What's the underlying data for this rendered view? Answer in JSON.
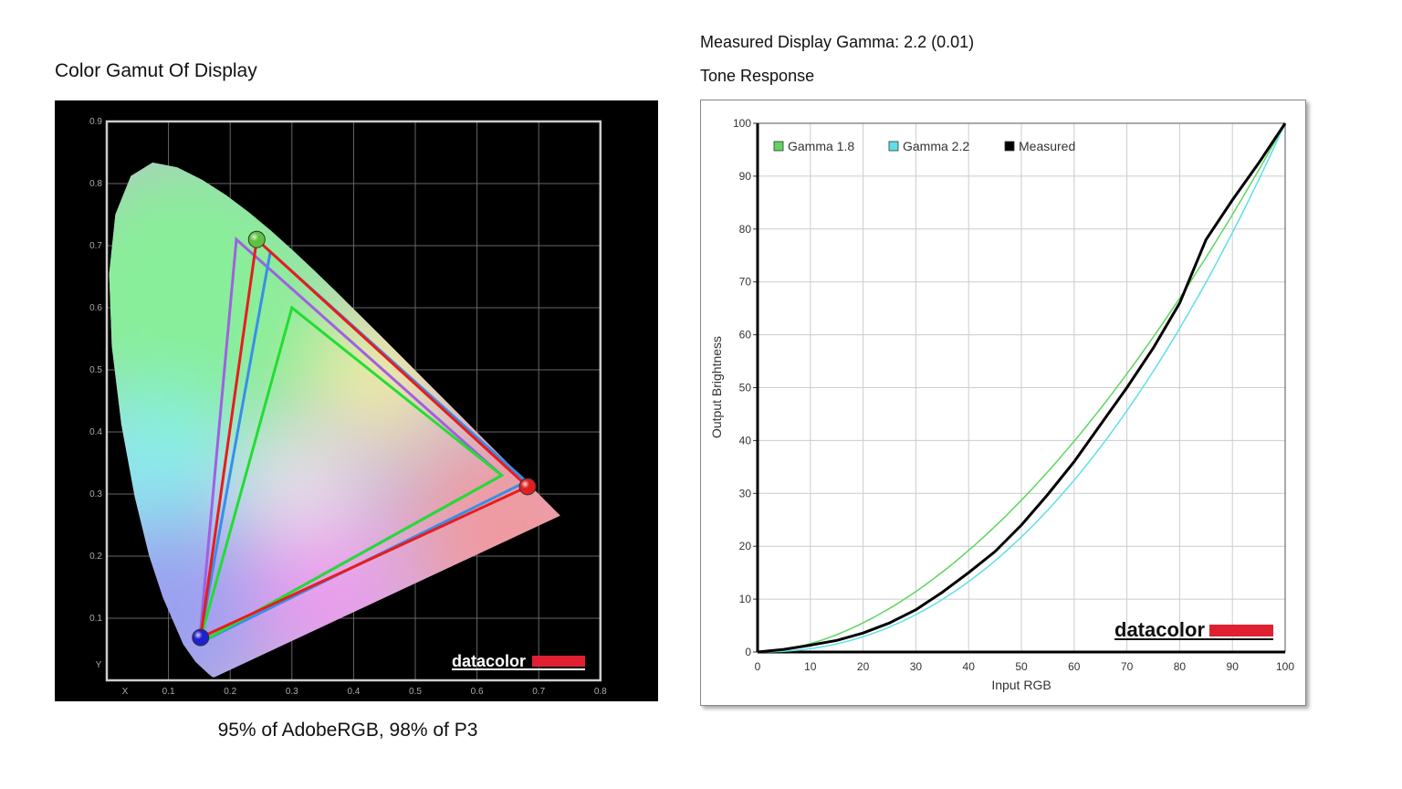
{
  "left_panel": {
    "title": "Color Gamut Of Display",
    "caption": "95% of AdobeRGB, 98% of P3",
    "logo_text": "datacolor"
  },
  "right_panel": {
    "gamma_text": "Measured Display Gamma: 2.2 (0.01)",
    "title": "Tone Response",
    "logo_text": "datacolor"
  },
  "chart_data": [
    {
      "type": "scatter",
      "subtype": "cie-1931-chromaticity-diagram",
      "xlim": [
        0,
        0.8
      ],
      "ylim": [
        0,
        0.9
      ],
      "x_axis_label": "X",
      "y_axis_label": "Y",
      "x_ticks": [
        "0.1",
        "0.2",
        "0.3",
        "0.4",
        "0.5",
        "0.6",
        "0.7",
        "0.8"
      ],
      "y_ticks": [
        "0.1",
        "0.2",
        "0.3",
        "0.4",
        "0.5",
        "0.6",
        "0.7",
        "0.8",
        "0.9"
      ],
      "grid": true,
      "background": "#000000",
      "triangles": [
        {
          "color": "#a060e0",
          "points": [
            [
              0.64,
              0.33
            ],
            [
              0.21,
              0.71
            ],
            [
              0.15,
              0.06
            ]
          ]
        },
        {
          "color": "#3a8ee8",
          "points": [
            [
              0.68,
              0.32
            ],
            [
              0.265,
              0.69
            ],
            [
              0.15,
              0.06
            ]
          ]
        },
        {
          "color": "#22dd33",
          "points": [
            [
              0.64,
              0.33
            ],
            [
              0.3,
              0.6
            ],
            [
              0.15,
              0.06
            ]
          ]
        },
        {
          "color": "#e81c1c",
          "points": [
            [
              0.682,
              0.312
            ],
            [
              0.243,
              0.71
            ],
            [
              0.152,
              0.069
            ]
          ]
        }
      ],
      "primaries": [
        {
          "color": "#e02020",
          "x": 0.682,
          "y": 0.312
        },
        {
          "color": "#60c040",
          "x": 0.243,
          "y": 0.71
        },
        {
          "color": "#2020d0",
          "x": 0.152,
          "y": 0.069
        }
      ]
    },
    {
      "type": "line",
      "xlabel": "Input RGB",
      "ylabel": "Output Brightness",
      "xlim": [
        0,
        100
      ],
      "ylim": [
        0,
        100
      ],
      "x_ticks": [
        0,
        10,
        20,
        30,
        40,
        50,
        60,
        70,
        80,
        90,
        100
      ],
      "y_ticks": [
        0,
        10,
        20,
        30,
        40,
        50,
        60,
        70,
        80,
        90,
        100
      ],
      "grid": true,
      "legend_position": "top-left",
      "series": [
        {
          "name": "Gamma 1.8",
          "color": "#5ed65e",
          "gamma": 1.8
        },
        {
          "name": "Gamma 2.2",
          "color": "#5ee0e8",
          "gamma": 2.2
        },
        {
          "name": "Measured",
          "color": "#000000",
          "x": [
            0,
            5,
            10,
            15,
            20,
            25,
            30,
            35,
            40,
            45,
            50,
            55,
            60,
            65,
            70,
            75,
            80,
            85,
            90,
            95,
            100
          ],
          "y": [
            0,
            0.5,
            1.3,
            2.2,
            3.6,
            5.5,
            8,
            11.3,
            15,
            19,
            24,
            29.8,
            36,
            43,
            50,
            57.5,
            66,
            78,
            85.5,
            92.5,
            100
          ]
        }
      ]
    }
  ]
}
